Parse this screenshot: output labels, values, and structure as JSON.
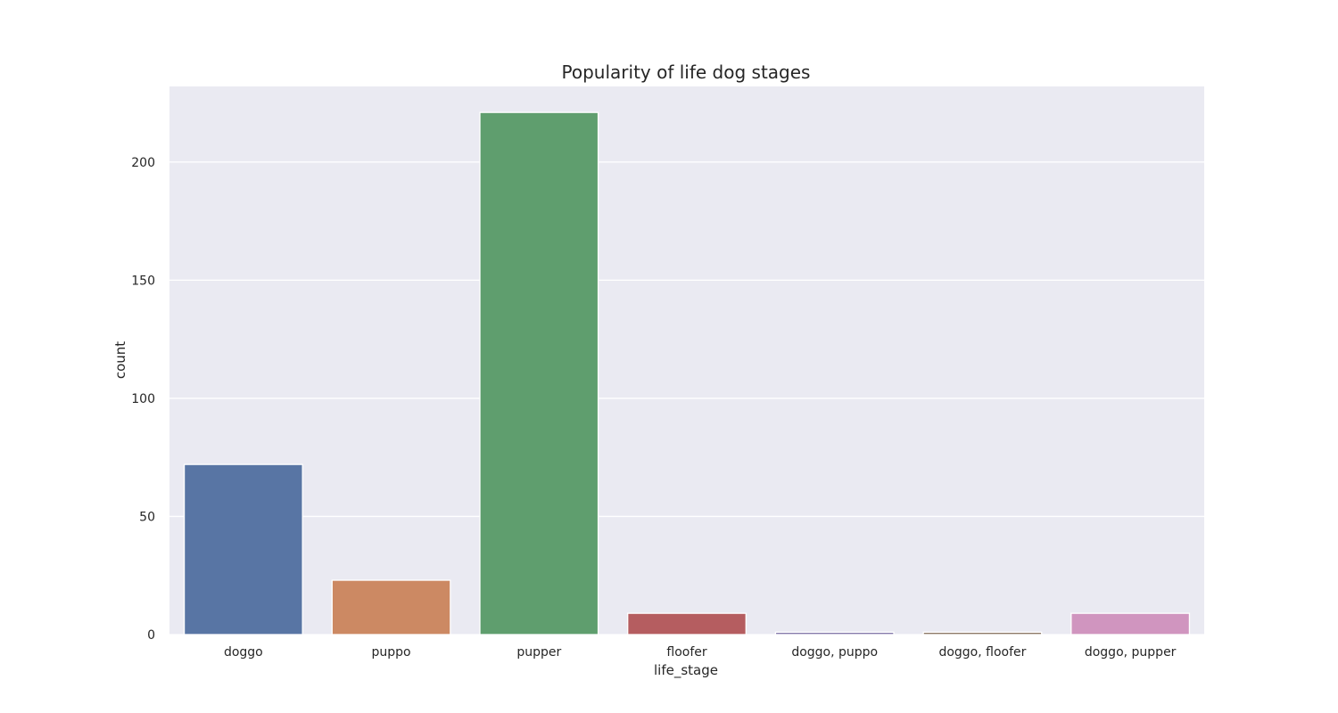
{
  "chart_data": {
    "type": "bar",
    "title": "Popularity of life dog stages",
    "xlabel": "life_stage",
    "ylabel": "count",
    "categories": [
      "doggo",
      "puppo",
      "pupper",
      "floofer",
      "doggo, puppo",
      "doggo, floofer",
      "doggo, pupper"
    ],
    "values": [
      72,
      23,
      221,
      9,
      1,
      1,
      9
    ],
    "colors": [
      "#5875a4",
      "#cc8963",
      "#5f9e6e",
      "#b55d60",
      "#857aab",
      "#8d7866",
      "#d095bf"
    ],
    "ylim": [
      0,
      232
    ],
    "yticks": [
      0,
      50,
      100,
      150,
      200
    ],
    "grid": true,
    "background": "#eaeaf2"
  }
}
